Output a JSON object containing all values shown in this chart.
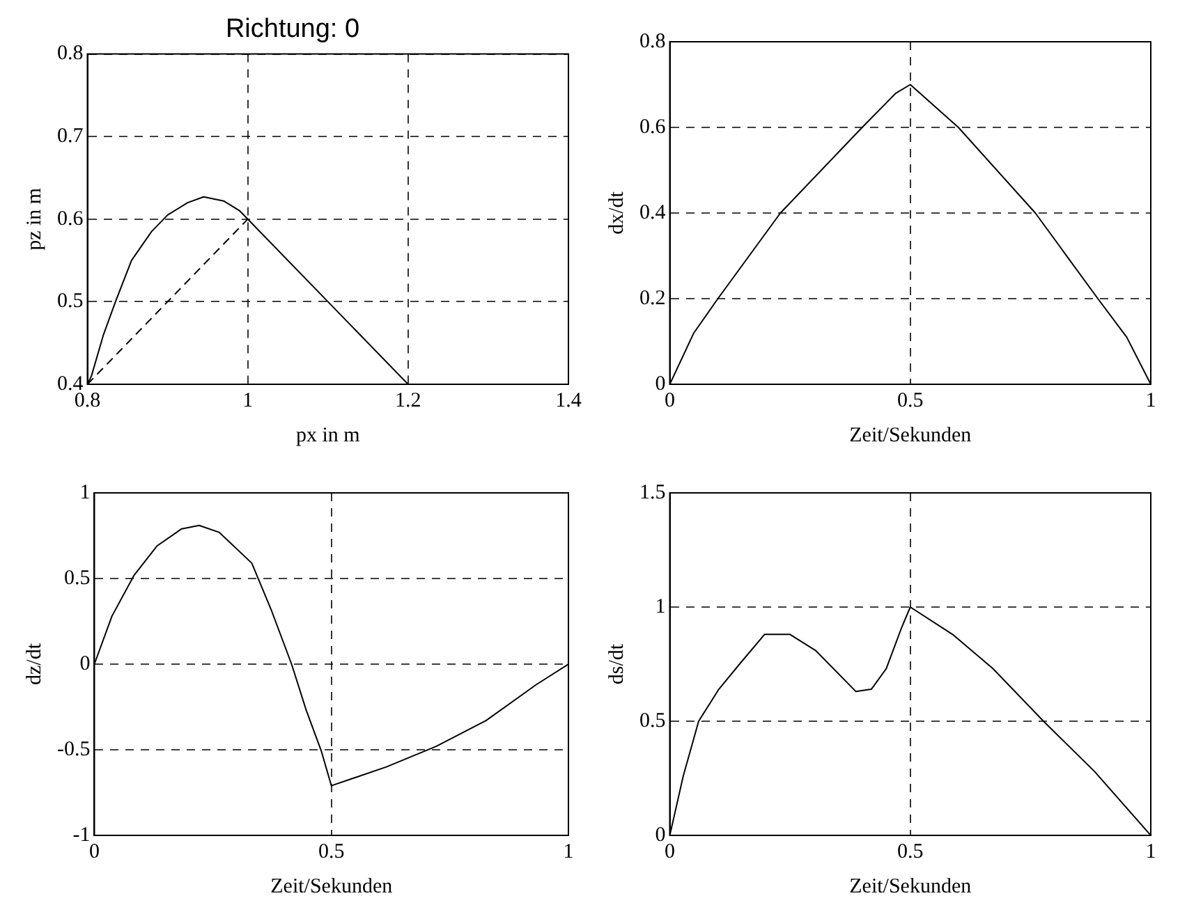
{
  "chart_data": [
    {
      "type": "line",
      "title": "Richtung: 0",
      "xlabel": "px in m",
      "ylabel": "pz in m",
      "xlim": [
        0.8,
        1.4
      ],
      "xticks": [
        0.8,
        1,
        1.2,
        1.4
      ],
      "ylim": [
        0.4,
        0.8
      ],
      "yticks": [
        0.4,
        0.5,
        0.6,
        0.7,
        0.8
      ],
      "grid": true,
      "marker": "none",
      "line_style": "solid",
      "series": [
        {
          "color": "#000000",
          "x": [
            0.8,
            0.805,
            0.82,
            0.835,
            0.855,
            0.88,
            0.9,
            0.925,
            0.945,
            0.97,
            0.99,
            1.0,
            1.1,
            1.2
          ],
          "values": [
            0.4,
            0.41,
            0.46,
            0.5,
            0.55,
            0.585,
            0.605,
            0.62,
            0.627,
            0.622,
            0.61,
            0.6,
            0.5,
            0.4
          ]
        },
        {
          "color": "#000000",
          "line_style": "dashed",
          "x": [
            0.8,
            1.0
          ],
          "values": [
            0.4,
            0.6
          ]
        }
      ]
    },
    {
      "type": "line",
      "xlabel": "Zeit/Sekunden",
      "ylabel": "dx/dt",
      "xlim": [
        0,
        1
      ],
      "xticks": [
        0,
        0.5,
        1
      ],
      "ylim": [
        0,
        0.8
      ],
      "yticks": [
        0,
        0.2,
        0.4,
        0.6,
        0.8
      ],
      "grid": true,
      "marker": "none",
      "line_style": "solid",
      "series": [
        {
          "color": "#000000",
          "x": [
            0,
            0.05,
            0.1,
            0.23,
            0.4,
            0.47,
            0.5,
            0.6,
            0.76,
            0.89,
            0.95,
            1
          ],
          "values": [
            0,
            0.12,
            0.2,
            0.4,
            0.6,
            0.68,
            0.7,
            0.6,
            0.4,
            0.2,
            0.11,
            0
          ]
        }
      ]
    },
    {
      "type": "line",
      "xlabel": "Zeit/Sekunden",
      "ylabel": "dz/dt",
      "xlim": [
        0,
        1
      ],
      "xticks": [
        0,
        0.5,
        1
      ],
      "ylim": [
        -1,
        1
      ],
      "yticks": [
        -1,
        -0.5,
        0,
        0.5,
        1
      ],
      "grid": true,
      "marker": "none",
      "line_style": "solid",
      "series": [
        {
          "color": "#000000",
          "x": [
            0,
            0.037,
            0.084,
            0.132,
            0.184,
            0.221,
            0.263,
            0.332,
            0.374,
            0.416,
            0.447,
            0.479,
            0.5,
            0.616,
            0.721,
            0.826,
            0.932,
            1
          ],
          "values": [
            0,
            0.28,
            0.52,
            0.69,
            0.79,
            0.81,
            0.77,
            0.59,
            0.31,
            0,
            -0.27,
            -0.51,
            -0.71,
            -0.6,
            -0.48,
            -0.33,
            -0.12,
            0
          ]
        }
      ]
    },
    {
      "type": "line",
      "xlabel": "Zeit/Sekunden",
      "ylabel": "ds/dt",
      "xlim": [
        0,
        1
      ],
      "xticks": [
        0,
        0.5,
        1
      ],
      "ylim": [
        0,
        1.5
      ],
      "yticks": [
        0,
        0.5,
        1,
        1.5
      ],
      "grid": true,
      "marker": "none",
      "line_style": "solid",
      "series": [
        {
          "color": "#000000",
          "x": [
            0,
            0.028,
            0.06,
            0.102,
            0.145,
            0.197,
            0.25,
            0.303,
            0.387,
            0.419,
            0.45,
            0.482,
            0.5,
            0.588,
            0.672,
            0.777,
            0.883,
            1
          ],
          "values": [
            0,
            0.26,
            0.5,
            0.64,
            0.75,
            0.88,
            0.88,
            0.81,
            0.63,
            0.64,
            0.73,
            0.91,
            1,
            0.88,
            0.73,
            0.5,
            0.28,
            0
          ]
        }
      ]
    }
  ]
}
